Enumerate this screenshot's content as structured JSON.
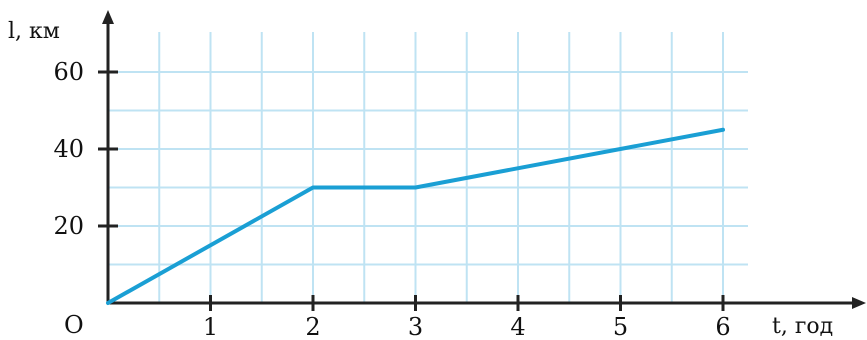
{
  "chart_data": {
    "type": "line",
    "xlabel": "t, год",
    "ylabel": "l, км",
    "origin_label": "O",
    "x_ticks": [
      1,
      2,
      3,
      4,
      5,
      6
    ],
    "y_ticks": [
      20,
      40,
      60
    ],
    "xlim": [
      0,
      6.5
    ],
    "ylim": [
      0,
      60
    ],
    "x_grid_step": 0.5,
    "y_grid_step": 10,
    "grid": true,
    "series": [
      {
        "x": [
          0,
          2,
          3,
          6
        ],
        "y": [
          0,
          30,
          30,
          45
        ]
      }
    ],
    "colors": {
      "line": "#1a9fd4",
      "grid": "#bfe3f3",
      "axis": "#222222"
    }
  }
}
